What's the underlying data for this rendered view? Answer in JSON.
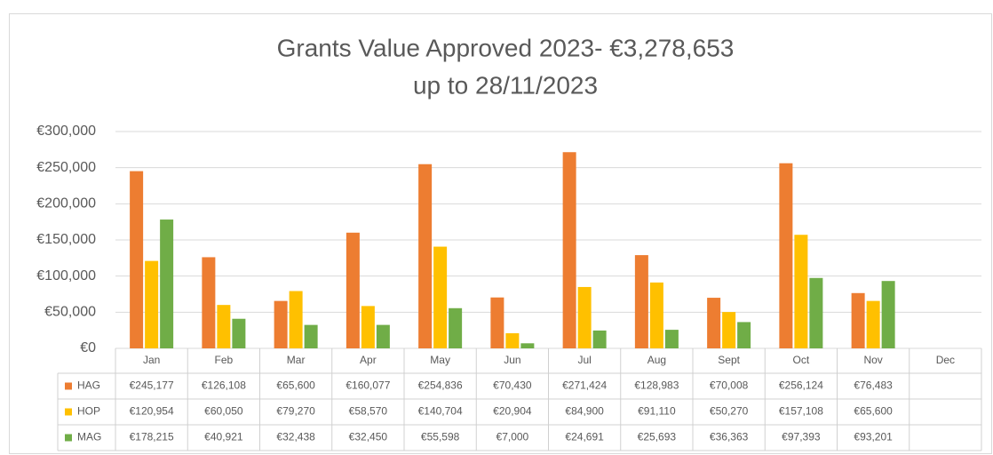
{
  "chart_data": {
    "type": "bar",
    "title": "Grants Value Approved 2023- €3,278,653",
    "subtitle": "up to 28/11/2023",
    "categories": [
      "Jan",
      "Feb",
      "Mar",
      "Apr",
      "May",
      "Jun",
      "Jul",
      "Aug",
      "Sept",
      "Oct",
      "Nov",
      "Dec"
    ],
    "series": [
      {
        "name": "HAG",
        "color": "#ed7d31",
        "values": [
          245177,
          126108,
          65600,
          160077,
          254836,
          70430,
          271424,
          128983,
          70008,
          256124,
          76483,
          null
        ],
        "value_labels": [
          "€245,177",
          "€126,108",
          "€65,600",
          "€160,077",
          "€254,836",
          "€70,430",
          "€271,424",
          "€128,983",
          "€70,008",
          "€256,124",
          "€76,483",
          null
        ]
      },
      {
        "name": "HOP",
        "color": "#ffc000",
        "values": [
          120954,
          60050,
          79270,
          58570,
          140704,
          20904,
          84900,
          91110,
          50270,
          157108,
          65600,
          null
        ],
        "value_labels": [
          "€120,954",
          "€60,050",
          "€79,270",
          "€58,570",
          "€140,704",
          "€20,904",
          "€84,900",
          "€91,110",
          "€50,270",
          "€157,108",
          "€65,600",
          null
        ]
      },
      {
        "name": "MAG",
        "color": "#70ad47",
        "values": [
          178215,
          40921,
          32438,
          32450,
          55598,
          7000,
          24691,
          25693,
          36363,
          97393,
          93201,
          null
        ],
        "value_labels": [
          "€178,215",
          "€40,921",
          "€32,438",
          "€32,450",
          "€55,598",
          "€7,000",
          "€24,691",
          "€25,693",
          "€36,363",
          "€97,393",
          "€93,201",
          null
        ]
      }
    ],
    "ylim": [
      0,
      300000
    ],
    "yticks": [
      {
        "value": 0,
        "label": "€0"
      },
      {
        "value": 50000,
        "label": "€50,000"
      },
      {
        "value": 100000,
        "label": "€100,000"
      },
      {
        "value": 150000,
        "label": "€150,000"
      },
      {
        "value": 200000,
        "label": "€200,000"
      },
      {
        "value": 250000,
        "label": "€250,000"
      },
      {
        "value": 300000,
        "label": "€300,000"
      }
    ],
    "grid": true
  }
}
